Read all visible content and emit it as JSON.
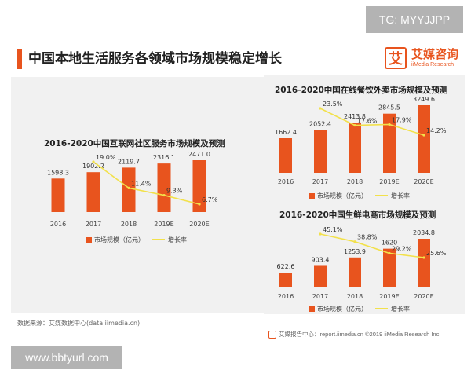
{
  "watermark_top": "TG: MYYJJPP",
  "watermark_bottom": "www.bbtyurl.com",
  "page_title": "中国本地生活服务各领域市场规模稳定增长",
  "logo": {
    "name": "艾媒咨询",
    "sub": "iiMedia Research",
    "mark": "艾"
  },
  "source_note": "数据来源：艾媒数据中心(data.iimedia.cn)",
  "footer": "艾媒报告中心：report.iimedia.cn   ©2019  iiMedia Research  Inc",
  "colors": {
    "bar": "#e8541e",
    "line": "#f2e14b",
    "panel": "#f1f1f1",
    "title_bar": "#e8541e"
  },
  "chart_data": [
    {
      "type": "bar",
      "title": "2016-2020中国互联网社区服务市场规模及预测",
      "categories": [
        "2016",
        "2017",
        "2018",
        "2019E",
        "2020E"
      ],
      "series": [
        {
          "name": "市场规模（亿元）",
          "values": [
            1598.3,
            1902.2,
            2119.7,
            2316.1,
            2471.0
          ],
          "labels": [
            "1598.3",
            "1902.2",
            "2119.7",
            "2316.1",
            "2471.0"
          ]
        },
        {
          "name": "增长率",
          "values": [
            null,
            19.0,
            11.4,
            9.3,
            6.7
          ],
          "labels": [
            "",
            "19.0%",
            "11.4%",
            "9.3%",
            "6.7%"
          ],
          "type": "line"
        }
      ],
      "legend": "bottom"
    },
    {
      "type": "bar",
      "title": "2016-2020中国在线餐饮外卖市场规模及预测",
      "categories": [
        "2016",
        "2017",
        "2018",
        "2019E",
        "2020E"
      ],
      "series": [
        {
          "name": "市场规模（亿元）",
          "values": [
            1662.4,
            2052.4,
            2413.8,
            2845.5,
            3249.6
          ],
          "labels": [
            "1662.4",
            "2052.4",
            "2413.8",
            "2845.5",
            "3249.6"
          ]
        },
        {
          "name": "增长率",
          "values": [
            null,
            23.5,
            17.6,
            17.9,
            14.2
          ],
          "labels": [
            "",
            "23.5%",
            "17.6%",
            "17.9%",
            "14.2%"
          ],
          "type": "line"
        }
      ],
      "legend": "bottom"
    },
    {
      "type": "bar",
      "title": "2016-2020中国生鲜电商市场规模及预测",
      "categories": [
        "2016",
        "2017",
        "2018",
        "2019E",
        "2020E"
      ],
      "series": [
        {
          "name": "市场规模（亿元）",
          "values": [
            622.6,
            903.4,
            1253.9,
            1620,
            2034.8
          ],
          "labels": [
            "622.6",
            "903.4",
            "1253.9",
            "1620",
            "2034.8"
          ]
        },
        {
          "name": "增长率",
          "values": [
            null,
            45.1,
            38.8,
            29.2,
            25.6
          ],
          "labels": [
            "",
            "45.1%",
            "38.8%",
            "29.2%",
            "25.6%"
          ],
          "type": "line"
        }
      ],
      "legend": "bottom"
    }
  ]
}
